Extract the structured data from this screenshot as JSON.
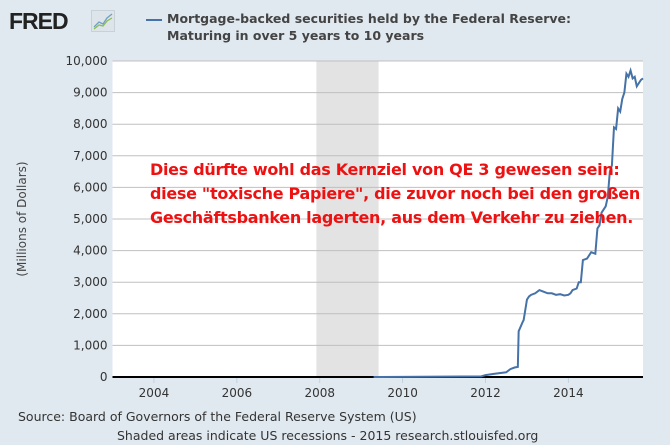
{
  "logo": "FRED",
  "legend": {
    "line1": "Mortgage-backed securities held by the Federal Reserve:",
    "line2": "Maturing in over 5 years to 10 years"
  },
  "source": "Source: Board of Governors of the Federal Reserve System (US)",
  "note": "Shaded areas indicate US recessions - 2015 research.stlouisfed.org",
  "annotation": [
    "Dies dürfte wohl das Kernziel von QE 3 gewesen sein:",
    "diese \"toxische Papiere\", die zuvor noch bei den großen",
    "Geschäftsbanken lagerten, aus dem Verkehr zu ziehen."
  ],
  "colors": {
    "line": "#4572a7",
    "annotation": "#ee1111",
    "recession": "#e3e3e3",
    "background": "#e1e9f0"
  },
  "chart_data": {
    "type": "line",
    "title": "Mortgage-backed securities held by the Federal Reserve: Maturing in over 5 years to 10 years",
    "ylabel": "(Millions of Dollars)",
    "xlim": [
      2003.0,
      2015.8
    ],
    "ylim": [
      0,
      10000
    ],
    "xticks": [
      "2004",
      "2006",
      "2008",
      "2010",
      "2012",
      "2014"
    ],
    "yticks": [
      "0",
      "1,000",
      "2,000",
      "3,000",
      "4,000",
      "5,000",
      "6,000",
      "7,000",
      "8,000",
      "9,000",
      "10,000"
    ],
    "grid": true,
    "recessions": [
      [
        2007.92,
        2009.42
      ]
    ],
    "series": [
      {
        "name": "Mortgage-backed securities held by the Federal Reserve: Maturing in over 5 years to 10 years",
        "x": [
          2009.3,
          2011.9,
          2012.0,
          2012.2,
          2012.5,
          2012.6,
          2012.7,
          2012.78,
          2012.8,
          2012.9,
          2012.92,
          2013.0,
          2013.05,
          2013.1,
          2013.2,
          2013.3,
          2013.4,
          2013.5,
          2013.6,
          2013.7,
          2013.8,
          2013.9,
          2014.0,
          2014.05,
          2014.1,
          2014.2,
          2014.25,
          2014.3,
          2014.35,
          2014.45,
          2014.55,
          2014.65,
          2014.7,
          2014.75,
          2014.8,
          2014.9,
          2014.95,
          2015.0,
          2015.05,
          2015.1,
          2015.15,
          2015.2,
          2015.25,
          2015.3,
          2015.35,
          2015.4,
          2015.45,
          2015.5,
          2015.55,
          2015.6,
          2015.65,
          2015.7,
          2015.75,
          2015.8
        ],
        "y": [
          0,
          20,
          60,
          100,
          150,
          250,
          300,
          320,
          1450,
          1750,
          1800,
          2450,
          2550,
          2600,
          2650,
          2750,
          2700,
          2650,
          2650,
          2600,
          2620,
          2580,
          2600,
          2650,
          2750,
          2800,
          3000,
          3000,
          3700,
          3750,
          3950,
          3900,
          4700,
          4800,
          5200,
          5400,
          5700,
          6500,
          6700,
          7900,
          7850,
          8500,
          8400,
          8800,
          9000,
          9600,
          9500,
          9700,
          9450,
          9500,
          9200,
          9300,
          9400,
          9450
        ]
      }
    ]
  }
}
